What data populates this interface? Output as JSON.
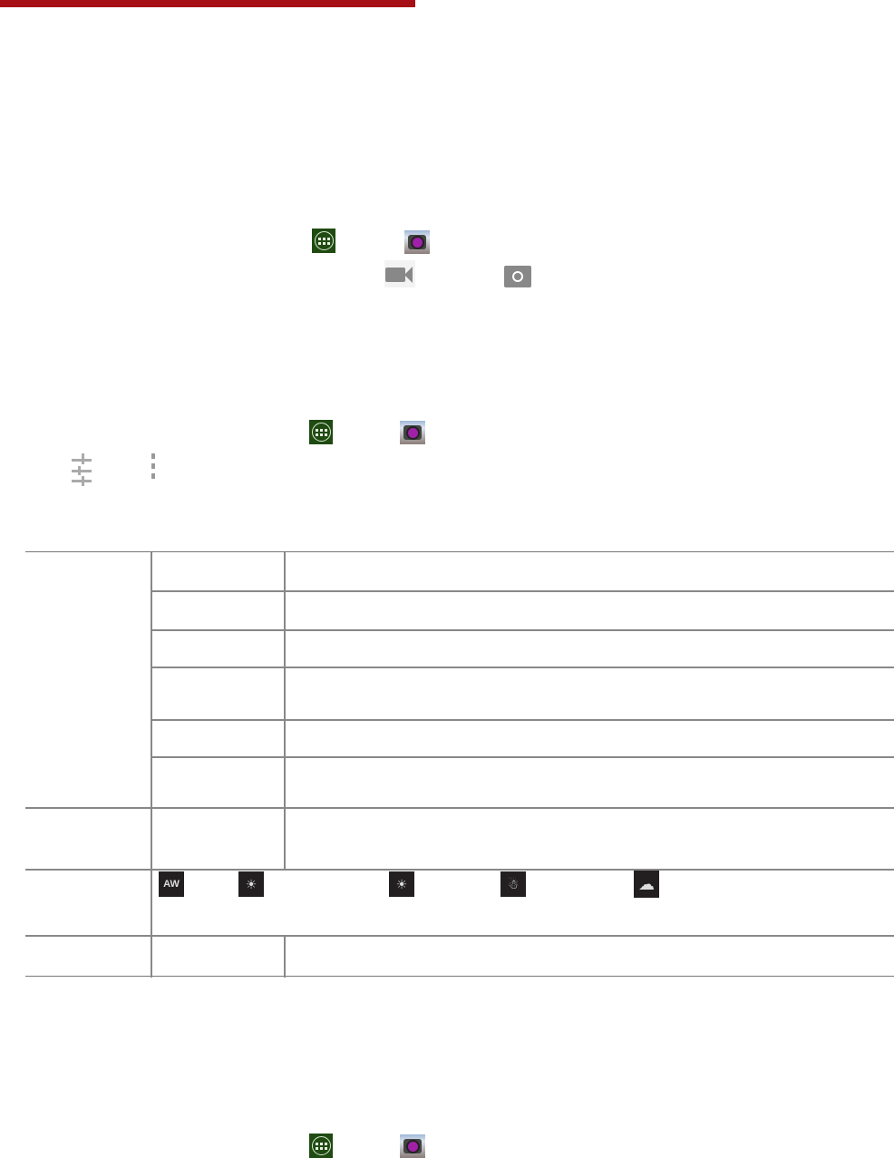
{
  "header": {
    "accent_color": "#a50f15"
  },
  "icons": {
    "apps_launcher": "apps-grid-icon",
    "camera_app": "camera-app-icon",
    "video_mode": "video-camera-icon",
    "photo_mode": "camera-outline-icon",
    "settings": "sliders-icon",
    "menu": "more-vertical-icon"
  },
  "white_balance_icons": [
    "auto-wb-icon",
    "incandescent-icon",
    "daylight-icon",
    "fluorescent-icon",
    "cloudy-icon"
  ],
  "white_balance_glyphs": [
    "AW",
    "☀",
    "☀",
    "☃",
    "☁"
  ]
}
